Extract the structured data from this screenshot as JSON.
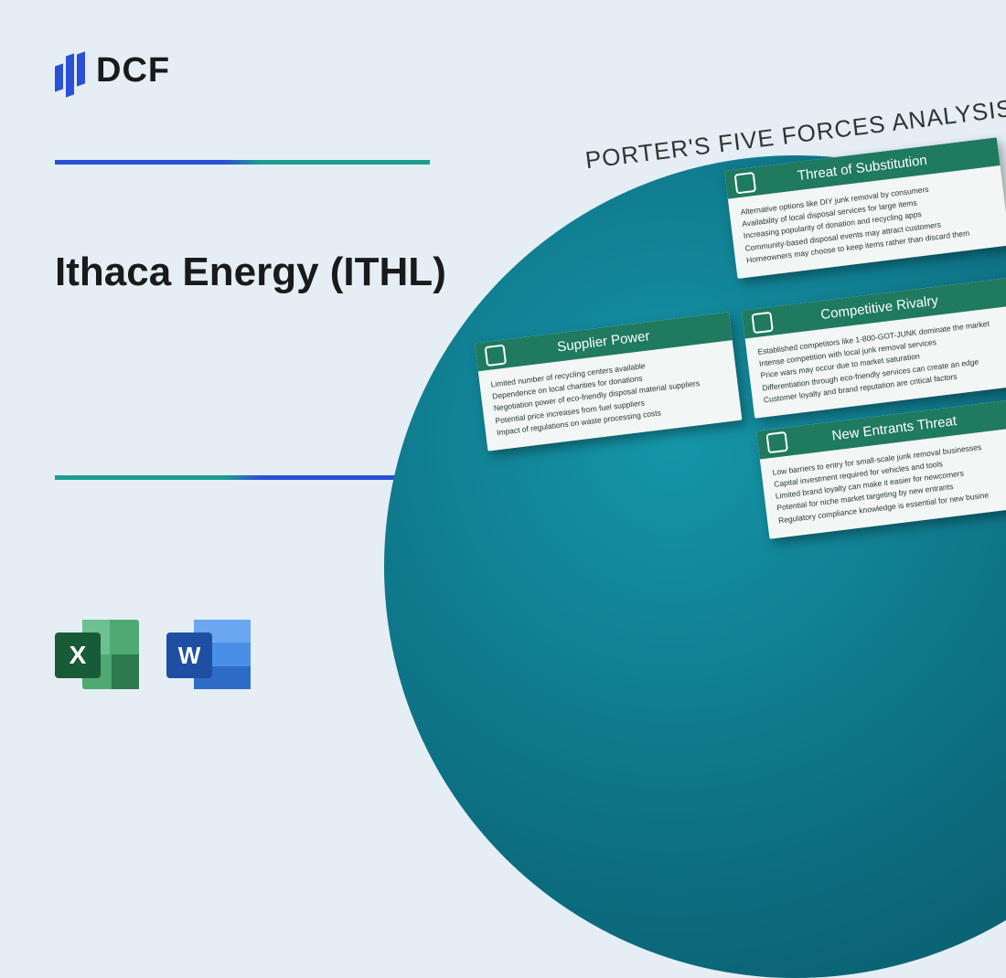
{
  "logo": {
    "text": "DCF"
  },
  "title": "Ithaca Energy (ITHL)",
  "file_icons": {
    "excel_letter": "X",
    "word_letter": "W"
  },
  "analysis": {
    "heading": "PORTER'S FIVE FORCES ANALYSIS",
    "cards": {
      "substitution": {
        "title": "Threat of Substitution",
        "lines": [
          "Alternative options like DIY junk removal by consumers",
          "Availability of local disposal services for large items",
          "Increasing popularity of donation and recycling apps",
          "Community-based disposal events may attract customers",
          "Homeowners may choose to keep items rather than discard them"
        ]
      },
      "supplier": {
        "title": "Supplier Power",
        "lines": [
          "Limited number of recycling centers available",
          "Dependence on local charities for donations",
          "Negotiation power of eco-friendly disposal material suppliers",
          "Potential price increases from fuel suppliers",
          "Impact of regulations on waste processing costs"
        ]
      },
      "rivalry": {
        "title": "Competitive Rivalry",
        "lines": [
          "Established competitors like 1-800-GOT-JUNK dominate the market",
          "Intense competition with local junk removal services",
          "Price wars may occur due to market saturation",
          "Differentiation through eco-friendly services can create an edge",
          "Customer loyalty and brand reputation are critical factors"
        ]
      },
      "entrants": {
        "title": "New Entrants Threat",
        "lines": [
          "Low barriers to entry for small-scale junk removal businesses",
          "Capital investment required for vehicles and tools",
          "Limited brand loyalty can make it easier for newcomers",
          "Potential for niche market targeting by new entrants",
          "Regulatory compliance knowledge is essential for new busine"
        ]
      }
    }
  },
  "colors": {
    "background": "#e5eef5",
    "accent_blue": "#2b4fd8",
    "accent_teal": "#1f9e8e",
    "card_header": "#1f7a5f",
    "circle_gradient_inner": "#1595a8",
    "circle_gradient_outer": "#095563"
  }
}
